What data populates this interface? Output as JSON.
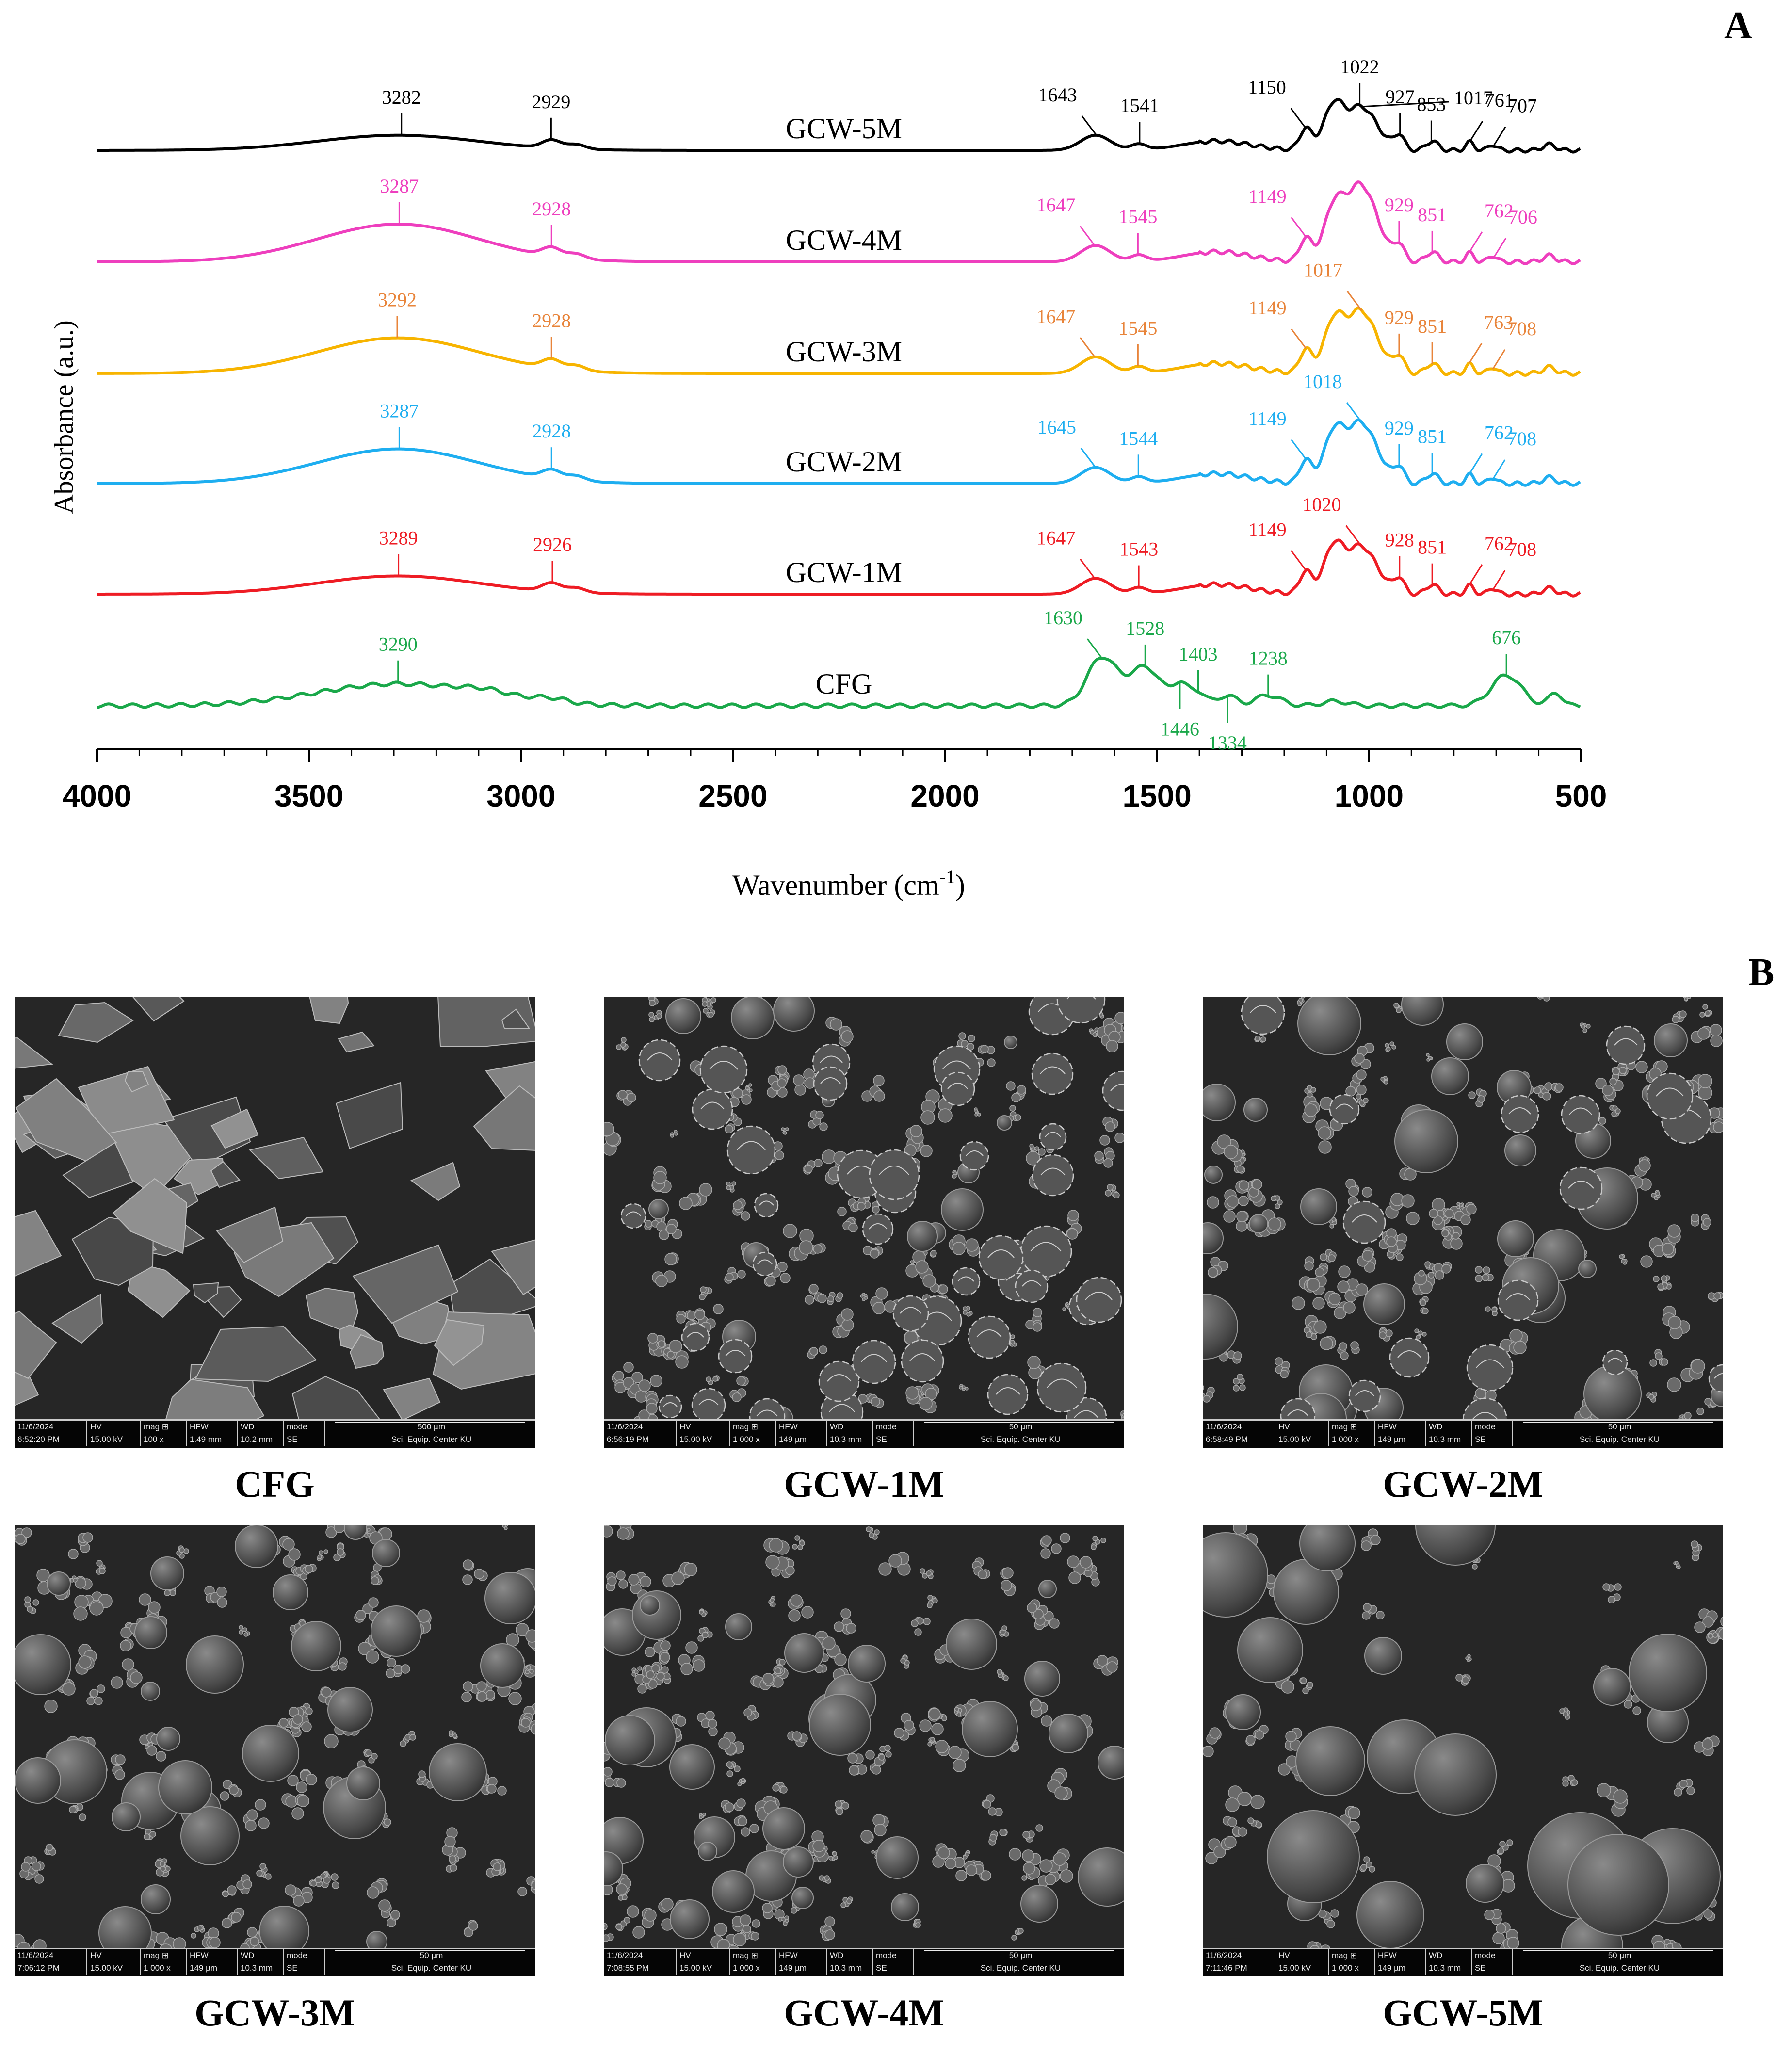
{
  "panels": {
    "a": "A",
    "b": "B"
  },
  "chart_data": {
    "type": "line",
    "title": "",
    "xlabel": "Wavenumber (cm-1)",
    "xlabel_main": "Wavenumber (cm",
    "xlabel_sup": "-1",
    "xlabel_tail": ")",
    "ylabel": "Absorbance (a.u.)",
    "xlim": [
      4000,
      500
    ],
    "xticks": [
      4000,
      3500,
      3000,
      2500,
      2000,
      1500,
      1000,
      500
    ],
    "grid": false,
    "series": [
      {
        "name": "GCW-5M",
        "color": "#000000",
        "baseline": 0,
        "peaks": [
          {
            "x": 3282,
            "label": "3282"
          },
          {
            "x": 2929,
            "label": "2929"
          },
          {
            "x": 1643,
            "label": "1643"
          },
          {
            "x": 1541,
            "label": "1541"
          },
          {
            "x": 1150,
            "label": "1150"
          },
          {
            "x": 1022,
            "label": "1022"
          },
          {
            "x": 1017,
            "label": "1017"
          },
          {
            "x": 927,
            "label": "927"
          },
          {
            "x": 853,
            "label": "853"
          },
          {
            "x": 761,
            "label": "761"
          },
          {
            "x": 707,
            "label": "707"
          }
        ]
      },
      {
        "name": "GCW-4M",
        "color": "#ee3fbe",
        "baseline": 1,
        "peaks": [
          {
            "x": 3287,
            "label": "3287"
          },
          {
            "x": 2928,
            "label": "2928"
          },
          {
            "x": 1647,
            "label": "1647"
          },
          {
            "x": 1545,
            "label": "1545"
          },
          {
            "x": 1149,
            "label": "1149"
          },
          {
            "x": 929,
            "label": "929"
          },
          {
            "x": 851,
            "label": "851"
          },
          {
            "x": 762,
            "label": "762"
          },
          {
            "x": 706,
            "label": "706"
          }
        ]
      },
      {
        "name": "GCW-3M",
        "color": "#f7b400",
        "label_color": "#e8843a",
        "baseline": 2,
        "peaks": [
          {
            "x": 3292,
            "label": "3292"
          },
          {
            "x": 2928,
            "label": "2928"
          },
          {
            "x": 1647,
            "label": "1647"
          },
          {
            "x": 1545,
            "label": "1545"
          },
          {
            "x": 1149,
            "label": "1149"
          },
          {
            "x": 1017,
            "label": "1017"
          },
          {
            "x": 929,
            "label": "929"
          },
          {
            "x": 851,
            "label": "851"
          },
          {
            "x": 763,
            "label": "763"
          },
          {
            "x": 708,
            "label": "708"
          }
        ]
      },
      {
        "name": "GCW-2M",
        "color": "#1eaef0",
        "baseline": 3,
        "peaks": [
          {
            "x": 3287,
            "label": "3287"
          },
          {
            "x": 2928,
            "label": "2928"
          },
          {
            "x": 1645,
            "label": "1645"
          },
          {
            "x": 1544,
            "label": "1544"
          },
          {
            "x": 1149,
            "label": "1149"
          },
          {
            "x": 1018,
            "label": "1018"
          },
          {
            "x": 929,
            "label": "929"
          },
          {
            "x": 851,
            "label": "851"
          },
          {
            "x": 762,
            "label": "762"
          },
          {
            "x": 708,
            "label": "708"
          }
        ]
      },
      {
        "name": "GCW-1M",
        "color": "#ee1c24",
        "baseline": 4,
        "peaks": [
          {
            "x": 3289,
            "label": "3289"
          },
          {
            "x": 2926,
            "label": "2926"
          },
          {
            "x": 1647,
            "label": "1647"
          },
          {
            "x": 1543,
            "label": "1543"
          },
          {
            "x": 1149,
            "label": "1149"
          },
          {
            "x": 1020,
            "label": "1020"
          },
          {
            "x": 928,
            "label": "928"
          },
          {
            "x": 851,
            "label": "851"
          },
          {
            "x": 762,
            "label": "762"
          },
          {
            "x": 708,
            "label": "708"
          }
        ]
      },
      {
        "name": "CFG",
        "color": "#1aa84a",
        "baseline": 5,
        "peaks": [
          {
            "x": 3290,
            "label": "3290"
          },
          {
            "x": 1630,
            "label": "1630"
          },
          {
            "x": 1528,
            "label": "1528"
          },
          {
            "x": 1446,
            "label": "1446"
          },
          {
            "x": 1403,
            "label": "1403"
          },
          {
            "x": 1334,
            "label": "1334"
          },
          {
            "x": 1238,
            "label": "1238"
          },
          {
            "x": 676,
            "label": "676"
          }
        ]
      }
    ]
  },
  "sem_images": [
    {
      "caption": "CFG",
      "date": "11/6/2024",
      "time": "6:52:20 PM",
      "hv": "15.00 kV",
      "mag": "100 x",
      "hfw": "1.49 mm",
      "wd": "10.2 mm",
      "mode": "SE",
      "scale": "500 µm",
      "center": "Sci. Equip. Center KU",
      "type": "flakes"
    },
    {
      "caption": "GCW-1M",
      "date": "11/6/2024",
      "time": "6:56:19 PM",
      "hv": "15.00 kV",
      "mag": "1 000 x",
      "hfw": "149 µm",
      "wd": "10.3 mm",
      "mode": "SE",
      "scale": "50 µm",
      "center": "Sci. Equip. Center KU",
      "type": "wrinkled"
    },
    {
      "caption": "GCW-2M",
      "date": "11/6/2024",
      "time": "6:58:49 PM",
      "hv": "15.00 kV",
      "mag": "1 000 x",
      "hfw": "149 µm",
      "wd": "10.3 mm",
      "mode": "SE",
      "scale": "50 µm",
      "center": "Sci. Equip. Center KU",
      "type": "mixed"
    },
    {
      "caption": "GCW-3M",
      "date": "11/6/2024",
      "time": "7:06:12 PM",
      "hv": "15.00 kV",
      "mag": "1 000 x",
      "hfw": "149 µm",
      "wd": "10.3 mm",
      "mode": "SE",
      "scale": "50 µm",
      "center": "Sci. Equip. Center KU",
      "type": "spheres"
    },
    {
      "caption": "GCW-4M",
      "date": "11/6/2024",
      "time": "7:08:55 PM",
      "hv": "15.00 kV",
      "mag": "1 000 x",
      "hfw": "149 µm",
      "wd": "10.3 mm",
      "mode": "SE",
      "scale": "50 µm",
      "center": "Sci. Equip. Center KU",
      "type": "spheres"
    },
    {
      "caption": "GCW-5M",
      "date": "11/6/2024",
      "time": "7:11:46 PM",
      "hv": "15.00 kV",
      "mag": "1 000 x",
      "hfw": "149 µm",
      "wd": "10.3 mm",
      "mode": "SE",
      "scale": "50 µm",
      "center": "Sci. Equip. Center KU",
      "type": "bigspheres"
    }
  ],
  "sem_bar_headers": {
    "hv": "HV",
    "mag": "mag ⊞",
    "hfw": "HFW",
    "wd": "WD",
    "mode": "mode"
  }
}
